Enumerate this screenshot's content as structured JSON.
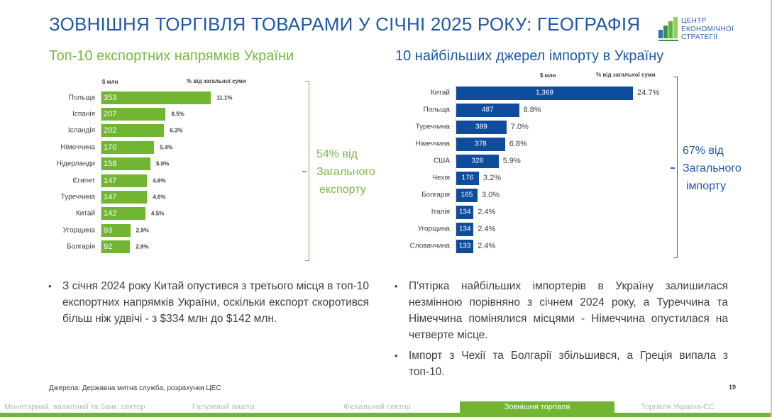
{
  "title": "ЗОВНІШНЯ ТОРГІВЛЯ ТОВАРАМИ У СІЧНІ 2025 РОКУ: ГЕОГРАФІЯ",
  "logo": {
    "line1": "ЦЕНТР",
    "line2": "ЕКОНОМІЧНОЇ",
    "line3": "СТРАТЕГІЇ"
  },
  "colors": {
    "title_blue": "#1f58a8",
    "export_green": "#72b533",
    "import_blue": "#0f4c9c",
    "text_gray": "#404040"
  },
  "export": {
    "subtitle": "Топ-10 експортних напрямків України",
    "col_value": "$ млн",
    "col_pct": "% від загальної суми",
    "bracket_note": {
      "line1": "54% від",
      "line2": "Загального",
      "line3": "експорту"
    },
    "rows": [
      {
        "label": "Польща",
        "value": "353",
        "pct": "11.1%"
      },
      {
        "label": "Іспанія",
        "value": "207",
        "pct": "6.5%"
      },
      {
        "label": "Ісландія",
        "value": "202",
        "pct": "6.3%"
      },
      {
        "label": "Німеччина",
        "value": "170",
        "pct": "5.4%"
      },
      {
        "label": "Нідерланди",
        "value": "158",
        "pct": "5.0%"
      },
      {
        "label": "Єгипет",
        "value": "147",
        "pct": "4.6%"
      },
      {
        "label": "Туреччина",
        "value": "147",
        "pct": "4.6%"
      },
      {
        "label": "Китай",
        "value": "142",
        "pct": "4.5%"
      },
      {
        "label": "Угорщина",
        "value": "93",
        "pct": "2.9%"
      },
      {
        "label": "Болгарія",
        "value": "92",
        "pct": "2.9%"
      }
    ],
    "bullet": "З січня 2024 року Китай опустився з третього місця в топ-10 експортних напрямків України, оскільки експорт скоротився більш ніж удвічі - з $334 млн до $142 млн."
  },
  "import": {
    "subtitle": "10 найбільших джерел імпорту в Україну",
    "col_value": "$ млн",
    "col_pct": "% від загальної суми",
    "bracket_note": {
      "line1": "67% від",
      "line2": "Загального",
      "line3": "імпорту"
    },
    "rows": [
      {
        "label": "Китай",
        "value": "1,369",
        "pct": "24.7%"
      },
      {
        "label": "Польща",
        "value": "487",
        "pct": "8.8%"
      },
      {
        "label": "Туреччина",
        "value": "389",
        "pct": "7.0%"
      },
      {
        "label": "Німеччина",
        "value": "378",
        "pct": "6.8%"
      },
      {
        "label": "США",
        "value": "328",
        "pct": "5.9%"
      },
      {
        "label": "Чехія",
        "value": "176",
        "pct": "3.2%"
      },
      {
        "label": "Болгарія",
        "value": "165",
        "pct": "3.0%"
      },
      {
        "label": "Італія",
        "value": "134",
        "pct": "2.4%"
      },
      {
        "label": "Угорщина",
        "value": "134",
        "pct": "2.4%"
      },
      {
        "label": "Словаччина",
        "value": "133",
        "pct": "2.4%"
      }
    ],
    "bullets": [
      "П'ятірка найбільших імпортерів в Україну залишилася незмінною порівняно з січнем 2024 року, а Туреччина та Німеччина помінялися місцями - Німеччина опустилася на четверте місце.",
      "Імпорт з Чехії та Болгарії збільшився, а Греція випала з топ-10."
    ]
  },
  "source": "Джерела: Державна митна служба, розрахунки ЦЕС",
  "page_number": "19",
  "footer_nav": [
    {
      "label": "Монетарний, валютний та банк. сектор",
      "active": false
    },
    {
      "label": "Галузевий аналіз",
      "active": false
    },
    {
      "label": "Фіскальний сектор",
      "active": false
    },
    {
      "label": "Зовнішня торгівля",
      "active": true
    },
    {
      "label": "Торгівля Україна-ЄС",
      "active": false
    }
  ],
  "chart_data": [
    {
      "type": "bar",
      "orientation": "horizontal",
      "title": "Топ-10 експортних напрямків України",
      "xlabel": "$ млн",
      "ylabel": "",
      "categories": [
        "Польща",
        "Іспанія",
        "Ісландія",
        "Німеччина",
        "Нідерланди",
        "Єгипет",
        "Туреччина",
        "Китай",
        "Угорщина",
        "Болгарія"
      ],
      "values": [
        353,
        207,
        202,
        170,
        158,
        147,
        147,
        142,
        93,
        92
      ],
      "series": [
        {
          "name": "$ млн",
          "values": [
            353,
            207,
            202,
            170,
            158,
            147,
            147,
            142,
            93,
            92
          ]
        },
        {
          "name": "% від загальної суми",
          "values": [
            11.1,
            6.5,
            6.3,
            5.4,
            5.0,
            4.6,
            4.6,
            4.5,
            2.9,
            2.9
          ]
        }
      ],
      "annotation": "54% від Загального експорту",
      "color": "#72b533",
      "grid": false,
      "legend": "none"
    },
    {
      "type": "bar",
      "orientation": "horizontal",
      "title": "10 найбільших джерел імпорту в Україну",
      "xlabel": "$ млн",
      "ylabel": "",
      "categories": [
        "Китай",
        "Польща",
        "Туреччина",
        "Німеччина",
        "США",
        "Чехія",
        "Болгарія",
        "Італія",
        "Угорщина",
        "Словаччина"
      ],
      "values": [
        1369,
        487,
        389,
        378,
        328,
        176,
        165,
        134,
        134,
        133
      ],
      "series": [
        {
          "name": "$ млн",
          "values": [
            1369,
            487,
            389,
            378,
            328,
            176,
            165,
            134,
            134,
            133
          ]
        },
        {
          "name": "% від загальної суми",
          "values": [
            24.7,
            8.8,
            7.0,
            6.8,
            5.9,
            3.2,
            3.0,
            2.4,
            2.4,
            2.4
          ]
        }
      ],
      "annotation": "67% від Загального імпорту",
      "color": "#0f4c9c",
      "grid": false,
      "legend": "none"
    }
  ]
}
